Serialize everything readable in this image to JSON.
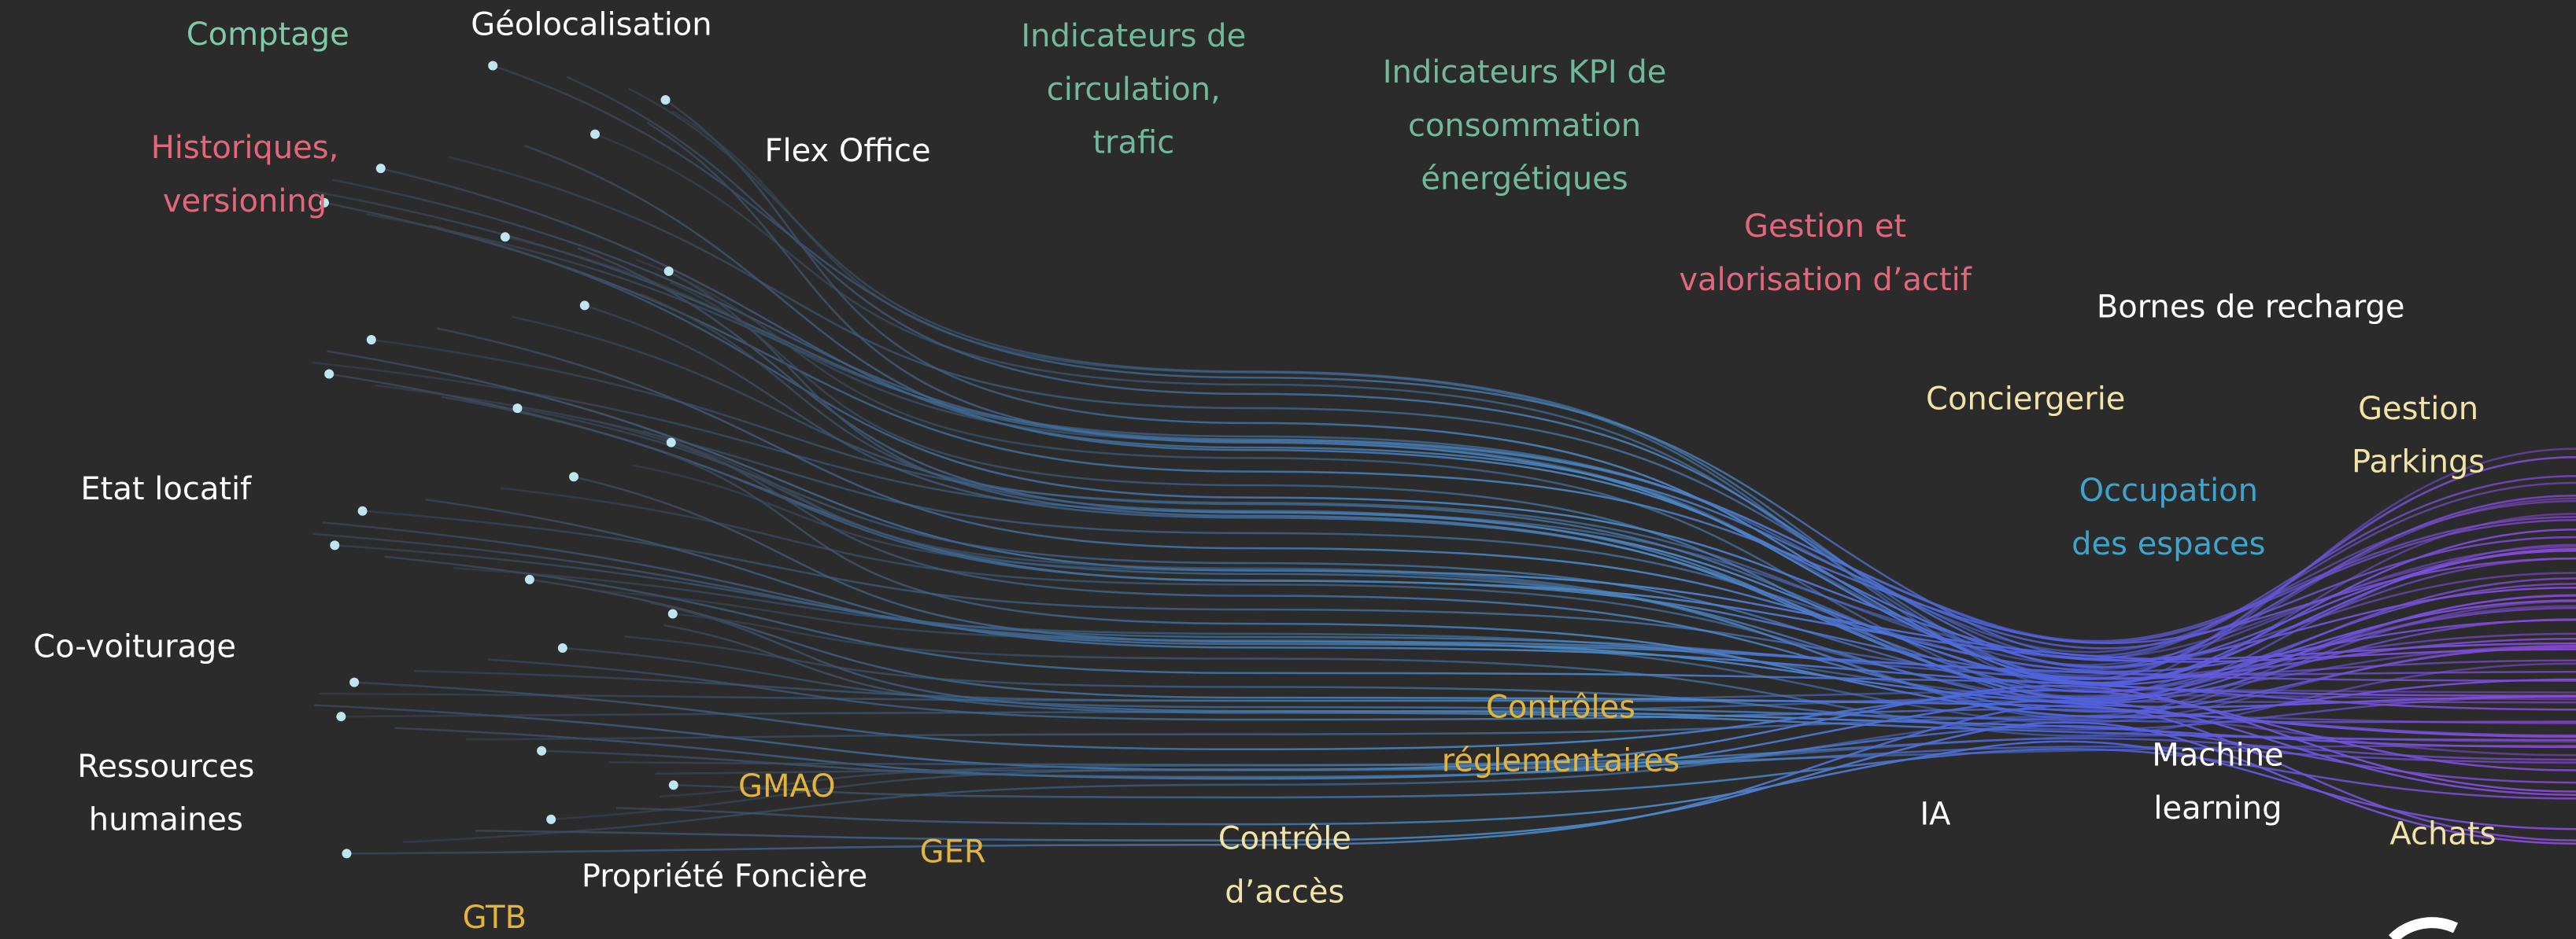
{
  "labels": [
    {
      "lines": [
        "Comptage"
      ],
      "color": "#7fc9a8"
    },
    {
      "lines": [
        "Géolocalisation"
      ],
      "color": "#ffffff"
    },
    {
      "lines": [
        "Historiques,",
        "versioning"
      ],
      "color": "#e0687a"
    },
    {
      "lines": [
        "Flex Office"
      ],
      "color": "#ffffff"
    },
    {
      "lines": [
        "Indicateurs de",
        "circulation,",
        "trafic"
      ],
      "color": "#72b89c"
    },
    {
      "lines": [
        "Indicateurs KPI de",
        "consommation",
        "énergétiques"
      ],
      "color": "#72b89c"
    },
    {
      "lines": [
        "Gestion et",
        "valorisation d’actif"
      ],
      "color": "#e0687a"
    },
    {
      "lines": [
        "Bornes de recharge"
      ],
      "color": "#ffffff"
    },
    {
      "lines": [
        "Conciergerie"
      ],
      "color": "#f2e3a6"
    },
    {
      "lines": [
        "Gestion",
        "Parkings"
      ],
      "color": "#f2e3a6"
    },
    {
      "lines": [
        "Occupation",
        "des espaces"
      ],
      "color": "#3ea4cc"
    },
    {
      "lines": [
        "Etat locatif"
      ],
      "color": "#ffffff"
    },
    {
      "lines": [
        "Co-voiturage"
      ],
      "color": "#ffffff"
    },
    {
      "lines": [
        "Ressources",
        "humaines"
      ],
      "color": "#ffffff"
    },
    {
      "lines": [
        "Contrôles",
        "réglementaires"
      ],
      "color": "#e3b43a"
    },
    {
      "lines": [
        "Machine",
        "learning"
      ],
      "color": "#ffffff"
    },
    {
      "lines": [
        "IA"
      ],
      "color": "#ffffff"
    },
    {
      "lines": [
        "Achats"
      ],
      "color": "#f2e3a6"
    },
    {
      "lines": [
        "GMAO"
      ],
      "color": "#e3b43a"
    },
    {
      "lines": [
        "GER"
      ],
      "color": "#e3b43a"
    },
    {
      "lines": [
        "Contrôle",
        "d’accès"
      ],
      "color": "#f2e3a6"
    },
    {
      "lines": [
        "Propriété Foncière"
      ],
      "color": "#ffffff"
    },
    {
      "lines": [
        "GTB"
      ],
      "color": "#e3b43a"
    }
  ]
}
